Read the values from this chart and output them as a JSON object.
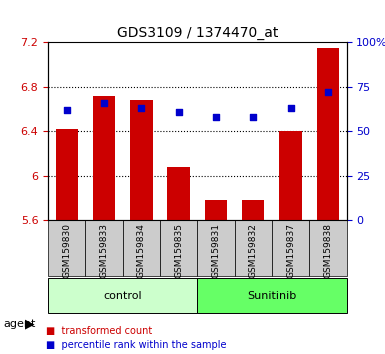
{
  "title": "GDS3109 / 1374470_at",
  "samples": [
    "GSM159830",
    "GSM159833",
    "GSM159834",
    "GSM159835",
    "GSM159831",
    "GSM159832",
    "GSM159837",
    "GSM159838"
  ],
  "bar_values": [
    6.42,
    6.72,
    6.68,
    6.08,
    5.78,
    5.78,
    6.4,
    7.15
  ],
  "percentile_values": [
    62,
    66,
    63,
    61,
    58,
    58,
    63,
    72
  ],
  "bar_bottom": 5.6,
  "ylim_left": [
    5.6,
    7.2
  ],
  "ylim_right": [
    0,
    100
  ],
  "yticks_left": [
    5.6,
    6.0,
    6.4,
    6.8,
    7.2
  ],
  "ytick_labels_left": [
    "5.6",
    "6",
    "6.4",
    "6.8",
    "7.2"
  ],
  "yticks_right": [
    0,
    25,
    50,
    75,
    100
  ],
  "ytick_labels_right": [
    "0",
    "25",
    "50",
    "75",
    "100%"
  ],
  "bar_color": "#cc0000",
  "dot_color": "#0000cc",
  "control_samples": [
    "GSM159830",
    "GSM159833",
    "GSM159834",
    "GSM159835"
  ],
  "sunitinib_samples": [
    "GSM159831",
    "GSM159832",
    "GSM159837",
    "GSM159838"
  ],
  "control_label": "control",
  "sunitinib_label": "Sunitinib",
  "control_color": "#ccffcc",
  "sunitinib_color": "#66ff66",
  "agent_label": "agent",
  "legend_bar_label": "transformed count",
  "legend_dot_label": "percentile rank within the sample",
  "grid_color": "#000000",
  "tick_area_color": "#cccccc",
  "bar_width": 0.6,
  "left_axis_color": "#cc0000",
  "right_axis_color": "#0000cc"
}
